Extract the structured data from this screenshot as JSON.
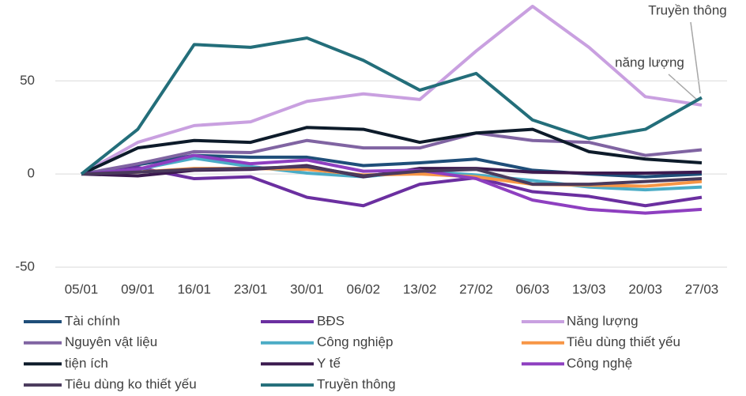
{
  "chart_data": {
    "type": "line",
    "categories": [
      "05/01",
      "09/01",
      "16/01",
      "23/01",
      "30/01",
      "06/02",
      "13/02",
      "27/02",
      "06/03",
      "13/03",
      "20/03",
      "27/03"
    ],
    "ylim": [
      -50,
      90
    ],
    "yticks": [
      -50,
      0,
      50
    ],
    "grid": true,
    "annotations": [
      "Truyền thông",
      "năng lượng"
    ],
    "series": [
      {
        "name": "Tài chính",
        "color": "#1f4e79",
        "values": [
          0,
          5,
          10,
          9,
          9,
          4.5,
          6,
          8,
          2,
          0,
          -1.5,
          0
        ]
      },
      {
        "name": "BĐS",
        "color": "#6b2fa0",
        "values": [
          0,
          3.5,
          -2.5,
          -1.5,
          -12.5,
          -17,
          -5.5,
          -2,
          -9.5,
          -12,
          -17,
          -12.5
        ]
      },
      {
        "name": "Năng lượng",
        "color": "#c9a0e0",
        "values": [
          0,
          17,
          26,
          28,
          39,
          43,
          40,
          66,
          90,
          68,
          41.5,
          37
        ]
      },
      {
        "name": "Nguyên vật liệu",
        "color": "#8064a2",
        "values": [
          0,
          5.5,
          12,
          11.5,
          18,
          14,
          14,
          22,
          18,
          17,
          10,
          13
        ]
      },
      {
        "name": "Công nghiệp",
        "color": "#4bacc6",
        "values": [
          0,
          2.5,
          8.5,
          4,
          0.5,
          -1.5,
          1.5,
          -0.5,
          -3.5,
          -7,
          -8.5,
          -7
        ]
      },
      {
        "name": "Tiêu dùng thiết yếu",
        "color": "#f79646",
        "values": [
          0,
          1,
          3,
          3,
          2.5,
          -0.5,
          0,
          -1.5,
          -5.5,
          -6,
          -6.5,
          -4
        ]
      },
      {
        "name": "tiện ích",
        "color": "#0d1b2a",
        "values": [
          0,
          14,
          18,
          17,
          25,
          24,
          17,
          22,
          24,
          12,
          8,
          6
        ]
      },
      {
        "name": "Y tế",
        "color": "#3b1a4f",
        "values": [
          0,
          -1,
          2,
          2.5,
          4.5,
          -1.5,
          3,
          3,
          1,
          0.5,
          0.5,
          1
        ]
      },
      {
        "name": "Công nghệ",
        "color": "#8e3fc0",
        "values": [
          0,
          2.5,
          10,
          5.5,
          7.5,
          1.5,
          2,
          -2.5,
          -14,
          -19,
          -21,
          -19
        ]
      },
      {
        "name": "Tiêu dùng ko thiết yếu",
        "color": "#4a3a5c",
        "values": [
          0,
          1,
          2.5,
          3,
          4,
          -1,
          1.5,
          2.5,
          -5.5,
          -5.5,
          -4,
          -2.5
        ]
      },
      {
        "name": "Truyền thông",
        "color": "#236e7a",
        "values": [
          0,
          24,
          69.5,
          68,
          73,
          61,
          45,
          54,
          29,
          19,
          24,
          41
        ]
      }
    ]
  }
}
